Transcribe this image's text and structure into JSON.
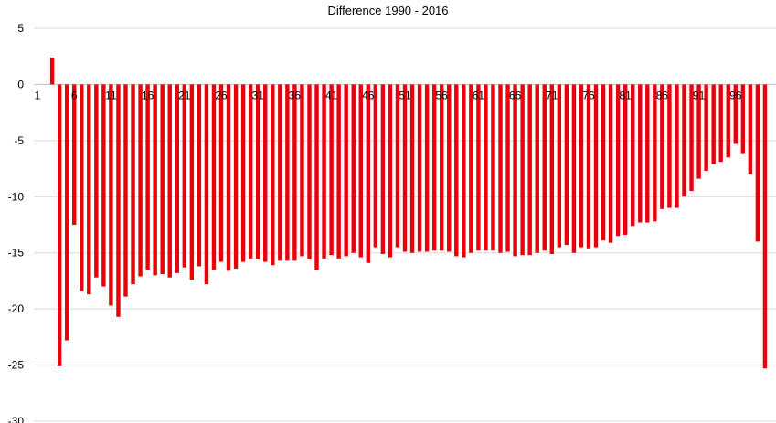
{
  "chart_data": {
    "type": "bar",
    "title": "Difference 1990 - 2016",
    "xlabel": "",
    "ylabel": "",
    "ylim": [
      -30,
      5
    ],
    "yticks": [
      5,
      0,
      -5,
      -10,
      -15,
      -20,
      -25,
      -30
    ],
    "grid": true,
    "legend": "none",
    "bar_color": "#e8000b",
    "grid_color": "#d9d9d9",
    "x_tick_labels": [
      "1",
      "6",
      "11",
      "16",
      "21",
      "26",
      "31",
      "36",
      "41",
      "46",
      "51",
      "56",
      "61",
      "66",
      "71",
      "76",
      "81",
      "86",
      "91",
      "96"
    ],
    "categories": [
      1,
      2,
      3,
      4,
      5,
      6,
      7,
      8,
      9,
      10,
      11,
      12,
      13,
      14,
      15,
      16,
      17,
      18,
      19,
      20,
      21,
      22,
      23,
      24,
      25,
      26,
      27,
      28,
      29,
      30,
      31,
      32,
      33,
      34,
      35,
      36,
      37,
      38,
      39,
      40,
      41,
      42,
      43,
      44,
      45,
      46,
      47,
      48,
      49,
      50,
      51,
      52,
      53,
      54,
      55,
      56,
      57,
      58,
      59,
      60,
      61,
      62,
      63,
      64,
      65,
      66,
      67,
      68,
      69,
      70,
      71,
      72,
      73,
      74,
      75,
      76,
      77,
      78,
      79,
      80,
      81,
      82,
      83,
      84,
      85,
      86,
      87,
      88,
      89,
      90,
      91,
      92,
      93,
      94,
      95,
      96,
      97,
      98,
      99,
      100,
      101
    ],
    "values": [
      0,
      0,
      2.4,
      -25.1,
      -22.8,
      -12.5,
      -18.4,
      -18.7,
      -17.2,
      -18.0,
      -19.7,
      -20.7,
      -18.9,
      -17.8,
      -17.1,
      -16.5,
      -17.0,
      -16.9,
      -17.2,
      -16.8,
      -16.3,
      -17.4,
      -16.2,
      -17.8,
      -16.5,
      -15.8,
      -16.6,
      -16.4,
      -15.8,
      -15.5,
      -15.6,
      -15.8,
      -16.1,
      -15.7,
      -15.7,
      -15.7,
      -15.3,
      -15.6,
      -16.5,
      -15.5,
      -15.2,
      -15.5,
      -15.3,
      -15.0,
      -15.4,
      -15.9,
      -14.5,
      -15.1,
      -15.4,
      -14.5,
      -14.9,
      -15.0,
      -14.9,
      -14.9,
      -14.8,
      -14.8,
      -14.9,
      -15.3,
      -15.4,
      -15.0,
      -14.8,
      -14.8,
      -14.8,
      -15.0,
      -14.9,
      -15.3,
      -15.2,
      -15.2,
      -15.0,
      -14.8,
      -15.1,
      -14.5,
      -14.3,
      -15.0,
      -14.5,
      -14.6,
      -14.5,
      -13.9,
      -14.1,
      -13.5,
      -13.4,
      -12.6,
      -12.3,
      -12.3,
      -12.2,
      -11.1,
      -11.0,
      -11.0,
      -10.0,
      -9.5,
      -8.4,
      -7.7,
      -7.1,
      -6.9,
      -6.5,
      -5.3,
      -6.2,
      -8.0,
      -14.0,
      -25.3,
      0
    ]
  }
}
